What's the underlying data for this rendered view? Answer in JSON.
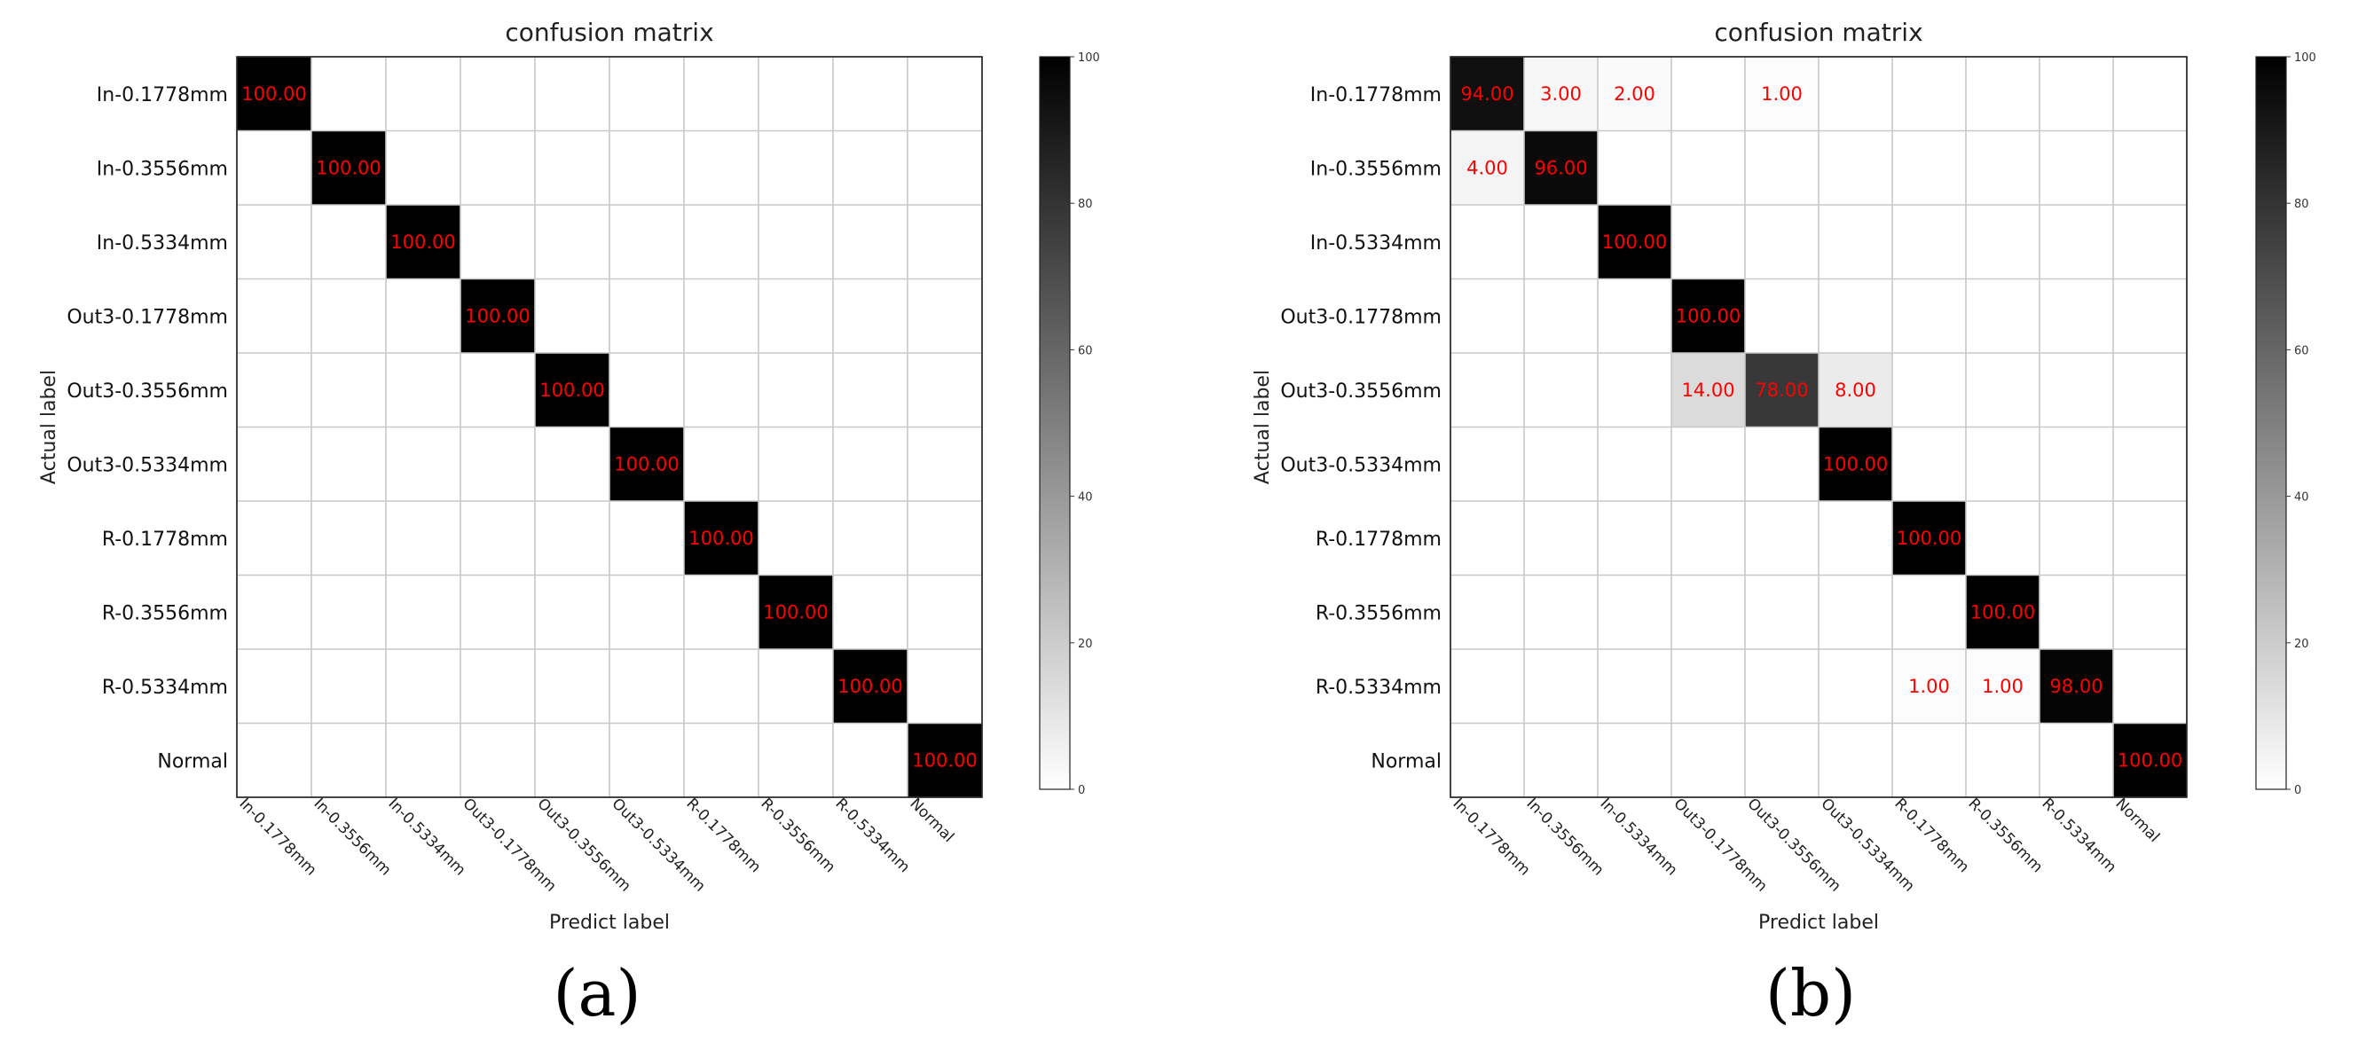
{
  "chart_data": [
    {
      "type": "heatmap",
      "panel": "(a)",
      "title": "confusion matrix",
      "xlabel": "Predict label",
      "ylabel": "Actual label",
      "row_labels": [
        "In-0.1778mm",
        "In-0.3556mm",
        "In-0.5334mm",
        "Out3-0.1778mm",
        "Out3-0.3556mm",
        "Out3-0.5334mm",
        "R-0.1778mm",
        "R-0.3556mm",
        "R-0.5334mm",
        "Normal"
      ],
      "col_labels": [
        "In-0.1778mm",
        "In-0.3556mm",
        "In-0.5334mm",
        "Out3-0.1778mm",
        "Out3-0.3556mm",
        "Out3-0.5334mm",
        "R-0.1778mm",
        "R-0.3556mm",
        "R-0.5334mm",
        "Normal"
      ],
      "cells": [
        {
          "row": 0,
          "col": 0,
          "value": 100.0,
          "label": "100.00"
        },
        {
          "row": 1,
          "col": 1,
          "value": 100.0,
          "label": "100.00"
        },
        {
          "row": 2,
          "col": 2,
          "value": 100.0,
          "label": "100.00"
        },
        {
          "row": 3,
          "col": 3,
          "value": 100.0,
          "label": "100.00"
        },
        {
          "row": 4,
          "col": 4,
          "value": 100.0,
          "label": "100.00"
        },
        {
          "row": 5,
          "col": 5,
          "value": 100.0,
          "label": "100.00"
        },
        {
          "row": 6,
          "col": 6,
          "value": 100.0,
          "label": "100.00"
        },
        {
          "row": 7,
          "col": 7,
          "value": 100.0,
          "label": "100.00"
        },
        {
          "row": 8,
          "col": 8,
          "value": 100.0,
          "label": "100.00"
        },
        {
          "row": 9,
          "col": 9,
          "value": 100.0,
          "label": "100.00"
        }
      ],
      "colorbar": {
        "min": 0,
        "max": 100,
        "ticks": [
          "0",
          "20",
          "40",
          "60",
          "80",
          "100"
        ],
        "colormap": "white-to-black"
      },
      "value_text_color": "#ff0000"
    },
    {
      "type": "heatmap",
      "panel": "(b)",
      "title": "confusion matrix",
      "xlabel": "Predict label",
      "ylabel": "Actual label",
      "row_labels": [
        "In-0.1778mm",
        "In-0.3556mm",
        "In-0.5334mm",
        "Out3-0.1778mm",
        "Out3-0.3556mm",
        "Out3-0.5334mm",
        "R-0.1778mm",
        "R-0.3556mm",
        "R-0.5334mm",
        "Normal"
      ],
      "col_labels": [
        "In-0.1778mm",
        "In-0.3556mm",
        "In-0.5334mm",
        "Out3-0.1778mm",
        "Out3-0.3556mm",
        "Out3-0.5334mm",
        "R-0.1778mm",
        "R-0.3556mm",
        "R-0.5334mm",
        "Normal"
      ],
      "cells": [
        {
          "row": 0,
          "col": 0,
          "value": 94.0,
          "label": "94.00"
        },
        {
          "row": 0,
          "col": 1,
          "value": 3.0,
          "label": "3.00"
        },
        {
          "row": 0,
          "col": 2,
          "value": 2.0,
          "label": "2.00"
        },
        {
          "row": 0,
          "col": 4,
          "value": 1.0,
          "label": "1.00"
        },
        {
          "row": 1,
          "col": 0,
          "value": 4.0,
          "label": "4.00"
        },
        {
          "row": 1,
          "col": 1,
          "value": 96.0,
          "label": "96.00"
        },
        {
          "row": 2,
          "col": 2,
          "value": 100.0,
          "label": "100.00"
        },
        {
          "row": 3,
          "col": 3,
          "value": 100.0,
          "label": "100.00"
        },
        {
          "row": 4,
          "col": 3,
          "value": 14.0,
          "label": "14.00"
        },
        {
          "row": 4,
          "col": 4,
          "value": 78.0,
          "label": "78.00"
        },
        {
          "row": 4,
          "col": 5,
          "value": 8.0,
          "label": "8.00"
        },
        {
          "row": 5,
          "col": 5,
          "value": 100.0,
          "label": "100.00"
        },
        {
          "row": 6,
          "col": 6,
          "value": 100.0,
          "label": "100.00"
        },
        {
          "row": 7,
          "col": 7,
          "value": 100.0,
          "label": "100.00"
        },
        {
          "row": 8,
          "col": 6,
          "value": 1.0,
          "label": "1.00"
        },
        {
          "row": 8,
          "col": 7,
          "value": 1.0,
          "label": "1.00"
        },
        {
          "row": 8,
          "col": 8,
          "value": 98.0,
          "label": "98.00"
        },
        {
          "row": 9,
          "col": 9,
          "value": 100.0,
          "label": "100.00"
        }
      ],
      "colorbar": {
        "min": 0,
        "max": 100,
        "ticks": [
          "0",
          "20",
          "40",
          "60",
          "80",
          "100"
        ],
        "colormap": "white-to-black"
      },
      "value_text_color": "#ff0000"
    }
  ]
}
